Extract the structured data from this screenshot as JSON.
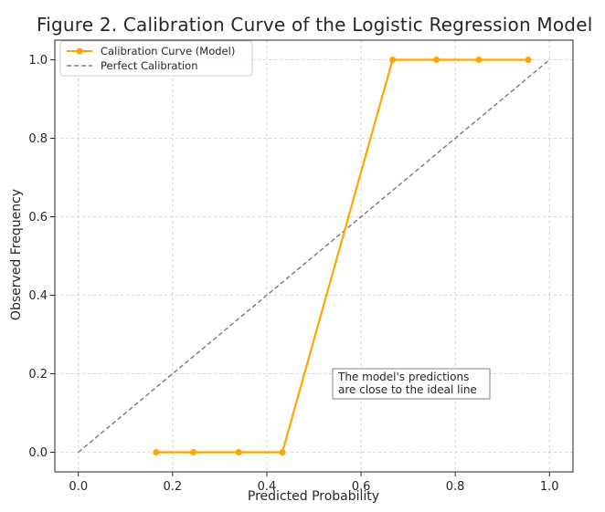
{
  "chart_data": {
    "type": "line",
    "title": "Figure 2. Calibration Curve of the Logistic Regression Model",
    "xlabel": "Predicted Probability",
    "ylabel": "Observed Frequency",
    "xlim": [
      -0.05,
      1.05
    ],
    "ylim": [
      -0.05,
      1.05
    ],
    "x_ticks": [
      0.0,
      0.2,
      0.4,
      0.6,
      0.8,
      1.0
    ],
    "y_ticks": [
      0.0,
      0.2,
      0.4,
      0.6,
      0.8,
      1.0
    ],
    "x_tick_labels": [
      "0.0",
      "0.2",
      "0.4",
      "0.6",
      "0.8",
      "1.0"
    ],
    "y_tick_labels": [
      "0.0",
      "0.2",
      "0.4",
      "0.6",
      "0.8",
      "1.0"
    ],
    "grid": true,
    "legend_position": "top-left",
    "series": [
      {
        "name": "Calibration Curve (Model)",
        "style": "solid-with-markers",
        "color": "#FFA500",
        "x": [
          0.165,
          0.244,
          0.34,
          0.433,
          0.667,
          0.76,
          0.85,
          0.955
        ],
        "y": [
          0.0,
          0.0,
          0.0,
          0.0,
          1.0,
          1.0,
          1.0,
          1.0
        ]
      },
      {
        "name": "Perfect Calibration",
        "style": "dashed",
        "color": "#808080",
        "x": [
          0.0,
          1.0
        ],
        "y": [
          0.0,
          1.0
        ]
      }
    ],
    "annotations": [
      {
        "lines": [
          "The model's predictions",
          "are close to the ideal line"
        ],
        "x": 0.55,
        "y": 0.18
      }
    ]
  }
}
